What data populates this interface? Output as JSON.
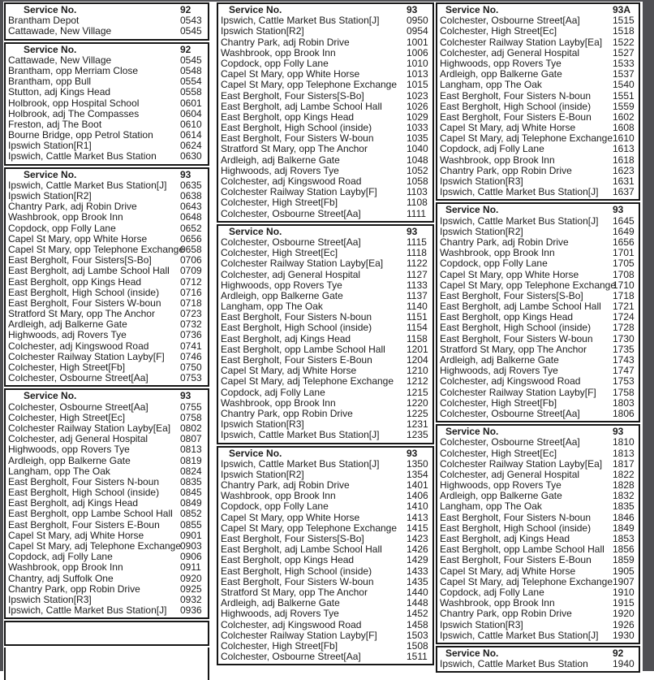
{
  "service_label": "Service No.",
  "frame_color": "#4f4f53",
  "border_color": "#161616",
  "text_color": "#1c1c1c",
  "columns": [
    {
      "name": "column-1",
      "tables": [
        {
          "service": "92",
          "rows": [
            {
              "stop": "Brantham Depot",
              "time": "0543"
            },
            {
              "stop": "Cattawade, New Village",
              "time": "0545"
            }
          ]
        },
        {
          "service": "92",
          "rows": [
            {
              "stop": "Cattawade, New Village",
              "time": "0545"
            },
            {
              "stop": "Brantham, opp Merriam Close",
              "time": "0548"
            },
            {
              "stop": "Brantham, opp Bull",
              "time": "0554"
            },
            {
              "stop": "Stutton, adj Kings Head",
              "time": "0558"
            },
            {
              "stop": "Holbrook, opp Hospital School",
              "time": "0601"
            },
            {
              "stop": "Holbrook, adj The Compasses",
              "time": "0604"
            },
            {
              "stop": "Freston, adj The Boot",
              "time": "0610"
            },
            {
              "stop": "Bourne Bridge, opp Petrol Station",
              "time": "0614"
            },
            {
              "stop": "Ipswich Station[R1]",
              "time": "0624"
            },
            {
              "stop": "Ipswich, Cattle Market Bus Station",
              "time": "0630"
            }
          ]
        },
        {
          "service": "93",
          "rows": [
            {
              "stop": "Ipswich, Cattle Market Bus Station[J]",
              "time": "0635"
            },
            {
              "stop": "Ipswich Station[R2]",
              "time": "0638"
            },
            {
              "stop": "Chantry Park, adj Robin Drive",
              "time": "0643"
            },
            {
              "stop": "Washbrook, opp Brook Inn",
              "time": "0648"
            },
            {
              "stop": "Copdock, opp Folly Lane",
              "time": "0652"
            },
            {
              "stop": "Capel St Mary, opp White Horse",
              "time": "0656"
            },
            {
              "stop": "Capel St Mary, opp Telephone Exchange",
              "time": "0658"
            },
            {
              "stop": "East Bergholt, Four Sisters[S-Bo]",
              "time": "0706"
            },
            {
              "stop": "East Bergholt, adj Lambe School Hall",
              "time": "0709"
            },
            {
              "stop": "East Bergholt, opp Kings Head",
              "time": "0712"
            },
            {
              "stop": "East Bergholt, High School (inside)",
              "time": "0716"
            },
            {
              "stop": "East Bergholt, Four Sisters W-boun",
              "time": "0718"
            },
            {
              "stop": "Stratford St Mary, opp The Anchor",
              "time": "0723"
            },
            {
              "stop": "Ardleigh, adj Balkerne Gate",
              "time": "0732"
            },
            {
              "stop": "Highwoods, adj Rovers Tye",
              "time": "0736"
            },
            {
              "stop": "Colchester, adj Kingswood Road",
              "time": "0741"
            },
            {
              "stop": "Colchester Railway Station Layby[F]",
              "time": "0746"
            },
            {
              "stop": "Colchester, High Street[Fb]",
              "time": "0750"
            },
            {
              "stop": "Colchester, Osbourne Street[Aa]",
              "time": "0753"
            }
          ]
        },
        {
          "service": "93",
          "rows": [
            {
              "stop": "Colchester, Osbourne Street[Aa]",
              "time": "0755"
            },
            {
              "stop": "Colchester, High Street[Ec]",
              "time": "0758"
            },
            {
              "stop": "Colchester Railway Station Layby[Ea]",
              "time": "0802"
            },
            {
              "stop": "Colchester, adj General Hospital",
              "time": "0807"
            },
            {
              "stop": "Highwoods, opp Rovers Tye",
              "time": "0813"
            },
            {
              "stop": "Ardleigh, opp Balkerne Gate",
              "time": "0819"
            },
            {
              "stop": "Langham, opp The Oak",
              "time": "0824"
            },
            {
              "stop": "East Bergholt, Four Sisters N-boun",
              "time": "0835"
            },
            {
              "stop": "East Bergholt, High School (inside)",
              "time": "0845"
            },
            {
              "stop": "East Bergholt, adj Kings Head",
              "time": "0849"
            },
            {
              "stop": "East Bergholt, opp Lambe School Hall",
              "time": "0852"
            },
            {
              "stop": "East Bergholt, Four Sisters E-Boun",
              "time": "0855"
            },
            {
              "stop": "Capel St Mary, adj White Horse",
              "time": "0901"
            },
            {
              "stop": "Capel St Mary, adj Telephone Exchange",
              "time": "0903"
            },
            {
              "stop": "Copdock, adj Folly Lane",
              "time": "0906"
            },
            {
              "stop": "Washbrook, opp Brook Inn",
              "time": "0911"
            },
            {
              "stop": "Chantry, adj Suffolk One",
              "time": "0920"
            },
            {
              "stop": "Chantry Park, opp Robin Drive",
              "time": "0925"
            },
            {
              "stop": "Ipswich Station[R3]",
              "time": "0932"
            },
            {
              "stop": "Ipswich, Cattle Market Bus Station[J]",
              "time": "0936"
            }
          ]
        },
        {
          "empty": true
        },
        {
          "fragment": true
        }
      ]
    },
    {
      "name": "column-2",
      "tables": [
        {
          "service": "93",
          "rows": [
            {
              "stop": "Ipswich, Cattle Market Bus Station[J]",
              "time": "0950"
            },
            {
              "stop": "Ipswich Station[R2]",
              "time": "0954"
            },
            {
              "stop": "Chantry Park, adj Robin Drive",
              "time": "1001"
            },
            {
              "stop": "Washbrook, opp Brook Inn",
              "time": "1006"
            },
            {
              "stop": "Copdock, opp Folly Lane",
              "time": "1010"
            },
            {
              "stop": "Capel St Mary, opp White Horse",
              "time": "1013"
            },
            {
              "stop": "Capel St Mary, opp Telephone Exchange",
              "time": "1015"
            },
            {
              "stop": "East Bergholt, Four Sisters[S-Bo]",
              "time": "1023"
            },
            {
              "stop": "East Bergholt, adj Lambe School Hall",
              "time": "1026"
            },
            {
              "stop": "East Bergholt, opp Kings Head",
              "time": "1029"
            },
            {
              "stop": "East Bergholt, High School (inside)",
              "time": "1033"
            },
            {
              "stop": "East Bergholt, Four Sisters W-boun",
              "time": "1035"
            },
            {
              "stop": "Stratford St Mary, opp The Anchor",
              "time": "1040"
            },
            {
              "stop": "Ardleigh, adj Balkerne Gate",
              "time": "1048"
            },
            {
              "stop": "Highwoods, adj Rovers Tye",
              "time": "1052"
            },
            {
              "stop": "Colchester, adj Kingswood Road",
              "time": "1058"
            },
            {
              "stop": "Colchester Railway Station Layby[F]",
              "time": "1103"
            },
            {
              "stop": "Colchester, High Street[Fb]",
              "time": "1108"
            },
            {
              "stop": "Colchester, Osbourne Street[Aa]",
              "time": "1111"
            }
          ]
        },
        {
          "service": "93",
          "rows": [
            {
              "stop": "Colchester, Osbourne Street[Aa]",
              "time": "1115"
            },
            {
              "stop": "Colchester, High Street[Ec]",
              "time": "1118"
            },
            {
              "stop": "Colchester Railway Station Layby[Ea]",
              "time": "1122"
            },
            {
              "stop": "Colchester, adj General Hospital",
              "time": "1127"
            },
            {
              "stop": "Highwoods, opp Rovers Tye",
              "time": "1133"
            },
            {
              "stop": "Ardleigh, opp Balkerne Gate",
              "time": "1137"
            },
            {
              "stop": "Langham, opp The Oak",
              "time": "1140"
            },
            {
              "stop": "East Bergholt, Four Sisters N-boun",
              "time": "1151"
            },
            {
              "stop": "East Bergholt, High School (inside)",
              "time": "1154"
            },
            {
              "stop": "East Bergholt, adj Kings Head",
              "time": "1158"
            },
            {
              "stop": "East Bergholt, opp Lambe School Hall",
              "time": "1201"
            },
            {
              "stop": "East Bergholt, Four Sisters E-Boun",
              "time": "1204"
            },
            {
              "stop": "Capel St Mary, adj White Horse",
              "time": "1210"
            },
            {
              "stop": "Capel St Mary, adj Telephone Exchange",
              "time": "1212"
            },
            {
              "stop": "Copdock, adj Folly Lane",
              "time": "1215"
            },
            {
              "stop": "Washbrook, opp Brook Inn",
              "time": "1220"
            },
            {
              "stop": "Chantry Park, opp Robin Drive",
              "time": "1225"
            },
            {
              "stop": "Ipswich Station[R3]",
              "time": "1231"
            },
            {
              "stop": "Ipswich, Cattle Market Bus Station[J]",
              "time": "1235"
            }
          ]
        },
        {
          "service": "93",
          "rows": [
            {
              "stop": "Ipswich, Cattle Market Bus Station[J]",
              "time": "1350"
            },
            {
              "stop": "Ipswich Station[R2]",
              "time": "1354"
            },
            {
              "stop": "Chantry Park, adj Robin Drive",
              "time": "1401"
            },
            {
              "stop": "Washbrook, opp Brook Inn",
              "time": "1406"
            },
            {
              "stop": "Copdock, opp Folly Lane",
              "time": "1410"
            },
            {
              "stop": "Capel St Mary, opp White Horse",
              "time": "1413"
            },
            {
              "stop": "Capel St Mary, opp Telephone Exchange",
              "time": "1415"
            },
            {
              "stop": "East Bergholt, Four Sisters[S-Bo]",
              "time": "1423"
            },
            {
              "stop": "East Bergholt, adj Lambe School Hall",
              "time": "1426"
            },
            {
              "stop": "East Bergholt, opp Kings Head",
              "time": "1429"
            },
            {
              "stop": "East Bergholt, High School (inside)",
              "time": "1433"
            },
            {
              "stop": "East Bergholt, Four Sisters W-boun",
              "time": "1435"
            },
            {
              "stop": "Stratford St Mary, opp The Anchor",
              "time": "1440"
            },
            {
              "stop": "Ardleigh, adj Balkerne Gate",
              "time": "1448"
            },
            {
              "stop": "Highwoods, adj Rovers Tye",
              "time": "1452"
            },
            {
              "stop": "Colchester, adj Kingswood Road",
              "time": "1458"
            },
            {
              "stop": "Colchester Railway Station Layby[F]",
              "time": "1503"
            },
            {
              "stop": "Colchester, High Street[Fb]",
              "time": "1508"
            },
            {
              "stop": "Colchester, Osbourne Street[Aa]",
              "time": "1511"
            }
          ]
        }
      ]
    },
    {
      "name": "column-3",
      "tables": [
        {
          "service": "93A",
          "rows": [
            {
              "stop": "Colchester, Osbourne Street[Aa]",
              "time": "1515"
            },
            {
              "stop": "Colchester, High Street[Ec]",
              "time": "1518"
            },
            {
              "stop": "Colchester Railway Station Layby[Ea]",
              "time": "1522"
            },
            {
              "stop": "Colchester, adj General Hospital",
              "time": "1527"
            },
            {
              "stop": "Highwoods, opp Rovers Tye",
              "time": "1533"
            },
            {
              "stop": "Ardleigh, opp Balkerne Gate",
              "time": "1537"
            },
            {
              "stop": "Langham, opp The Oak",
              "time": "1540"
            },
            {
              "stop": "East Bergholt, Four Sisters N-boun",
              "time": "1551"
            },
            {
              "stop": "East Bergholt, High School (inside)",
              "time": "1559"
            },
            {
              "stop": "East Bergholt, Four Sisters E-Boun",
              "time": "1602"
            },
            {
              "stop": "Capel St Mary, adj White Horse",
              "time": "1608"
            },
            {
              "stop": "Capel St Mary, adj Telephone Exchange",
              "time": "1610"
            },
            {
              "stop": "Copdock, adj Folly Lane",
              "time": "1613"
            },
            {
              "stop": "Washbrook, opp Brook Inn",
              "time": "1618"
            },
            {
              "stop": "Chantry Park, opp Robin Drive",
              "time": "1623"
            },
            {
              "stop": "Ipswich Station[R3]",
              "time": "1631"
            },
            {
              "stop": "Ipswich, Cattle Market Bus Station[J]",
              "time": "1637"
            }
          ]
        },
        {
          "service": "93",
          "rows": [
            {
              "stop": "Ipswich, Cattle Market Bus Station[J]",
              "time": "1645"
            },
            {
              "stop": "Ipswich Station[R2]",
              "time": "1649"
            },
            {
              "stop": "Chantry Park, adj Robin Drive",
              "time": "1656"
            },
            {
              "stop": "Washbrook, opp Brook Inn",
              "time": "1701"
            },
            {
              "stop": "Copdock, opp Folly Lane",
              "time": "1705"
            },
            {
              "stop": "Capel St Mary, opp White Horse",
              "time": "1708"
            },
            {
              "stop": "Capel St Mary, opp Telephone Exchange",
              "time": "1710"
            },
            {
              "stop": "East Bergholt, Four Sisters[S-Bo]",
              "time": "1718"
            },
            {
              "stop": "East Bergholt, adj Lambe School Hall",
              "time": "1721"
            },
            {
              "stop": "East Bergholt, opp Kings Head",
              "time": "1724"
            },
            {
              "stop": "East Bergholt, High School (inside)",
              "time": "1728"
            },
            {
              "stop": "East Bergholt, Four Sisters W-boun",
              "time": "1730"
            },
            {
              "stop": "Stratford St Mary, opp The Anchor",
              "time": "1735"
            },
            {
              "stop": "Ardleigh, adj Balkerne Gate",
              "time": "1743"
            },
            {
              "stop": "Highwoods, adj Rovers Tye",
              "time": "1747"
            },
            {
              "stop": "Colchester, adj Kingswood Road",
              "time": "1753"
            },
            {
              "stop": "Colchester Railway Station Layby[F]",
              "time": "1758"
            },
            {
              "stop": "Colchester, High Street[Fb]",
              "time": "1803"
            },
            {
              "stop": "Colchester, Osbourne Street[Aa]",
              "time": "1806"
            }
          ]
        },
        {
          "service": "93",
          "rows": [
            {
              "stop": "Colchester, Osbourne Street[Aa]",
              "time": "1810"
            },
            {
              "stop": "Colchester, High Street[Ec]",
              "time": "1813"
            },
            {
              "stop": "Colchester Railway Station Layby[Ea]",
              "time": "1817"
            },
            {
              "stop": "Colchester, adj General Hospital",
              "time": "1822"
            },
            {
              "stop": "Highwoods, opp Rovers Tye",
              "time": "1828"
            },
            {
              "stop": "Ardleigh, opp Balkerne Gate",
              "time": "1832"
            },
            {
              "stop": "Langham, opp The Oak",
              "time": "1835"
            },
            {
              "stop": "East Bergholt, Four Sisters N-boun",
              "time": "1846"
            },
            {
              "stop": "East Bergholt, High School (inside)",
              "time": "1849"
            },
            {
              "stop": "East Bergholt, adj Kings Head",
              "time": "1853"
            },
            {
              "stop": "East Bergholt, opp Lambe School Hall",
              "time": "1856"
            },
            {
              "stop": "East Bergholt, Four Sisters E-Boun",
              "time": "1859"
            },
            {
              "stop": "Capel St Mary, adj White Horse",
              "time": "1905"
            },
            {
              "stop": "Capel St Mary, adj Telephone Exchange",
              "time": "1907"
            },
            {
              "stop": "Copdock, adj Folly Lane",
              "time": "1910"
            },
            {
              "stop": "Washbrook, opp Brook Inn",
              "time": "1915"
            },
            {
              "stop": "Chantry Park, opp Robin Drive",
              "time": "1920"
            },
            {
              "stop": "Ipswich Station[R3]",
              "time": "1926"
            },
            {
              "stop": "Ipswich, Cattle Market Bus Station[J]",
              "time": "1930"
            }
          ]
        },
        {
          "service": "92",
          "rows": [
            {
              "stop": "Ipswich, Cattle Market Bus Station",
              "time": "1940"
            }
          ]
        }
      ]
    }
  ]
}
